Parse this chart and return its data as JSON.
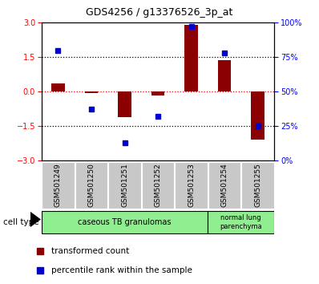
{
  "title": "GDS4256 / g13376526_3p_at",
  "samples": [
    "GSM501249",
    "GSM501250",
    "GSM501251",
    "GSM501252",
    "GSM501253",
    "GSM501254",
    "GSM501255"
  ],
  "transformed_count": [
    0.35,
    -0.05,
    -1.1,
    -0.18,
    2.9,
    1.38,
    -2.1
  ],
  "percentile_rank_pct": [
    80,
    37,
    13,
    32,
    97,
    78,
    25
  ],
  "red_color": "#8B0000",
  "blue_color": "#0000CC",
  "left_ylim": [
    -3,
    3
  ],
  "right_ylim": [
    0,
    100
  ],
  "left_yticks": [
    -3,
    -1.5,
    0,
    1.5,
    3
  ],
  "right_yticks": [
    0,
    25,
    50,
    75,
    100
  ],
  "right_yticklabels": [
    "0%",
    "25%",
    "50%",
    "75%",
    "100%"
  ],
  "zero_line_color": "red",
  "dotted_line_color": "black",
  "group1_label": "caseous TB granulomas",
  "group2_label": "normal lung\nparenchyma",
  "group1_color": "#90EE90",
  "group2_color": "#90EE90",
  "cell_type_label": "cell type",
  "bar_width": 0.4,
  "legend_red_label": "transformed count",
  "legend_blue_label": "percentile rank within the sample",
  "sample_box_color": "#C8C8C8",
  "title_fontsize": 9,
  "tick_fontsize": 7,
  "legend_fontsize": 7.5
}
